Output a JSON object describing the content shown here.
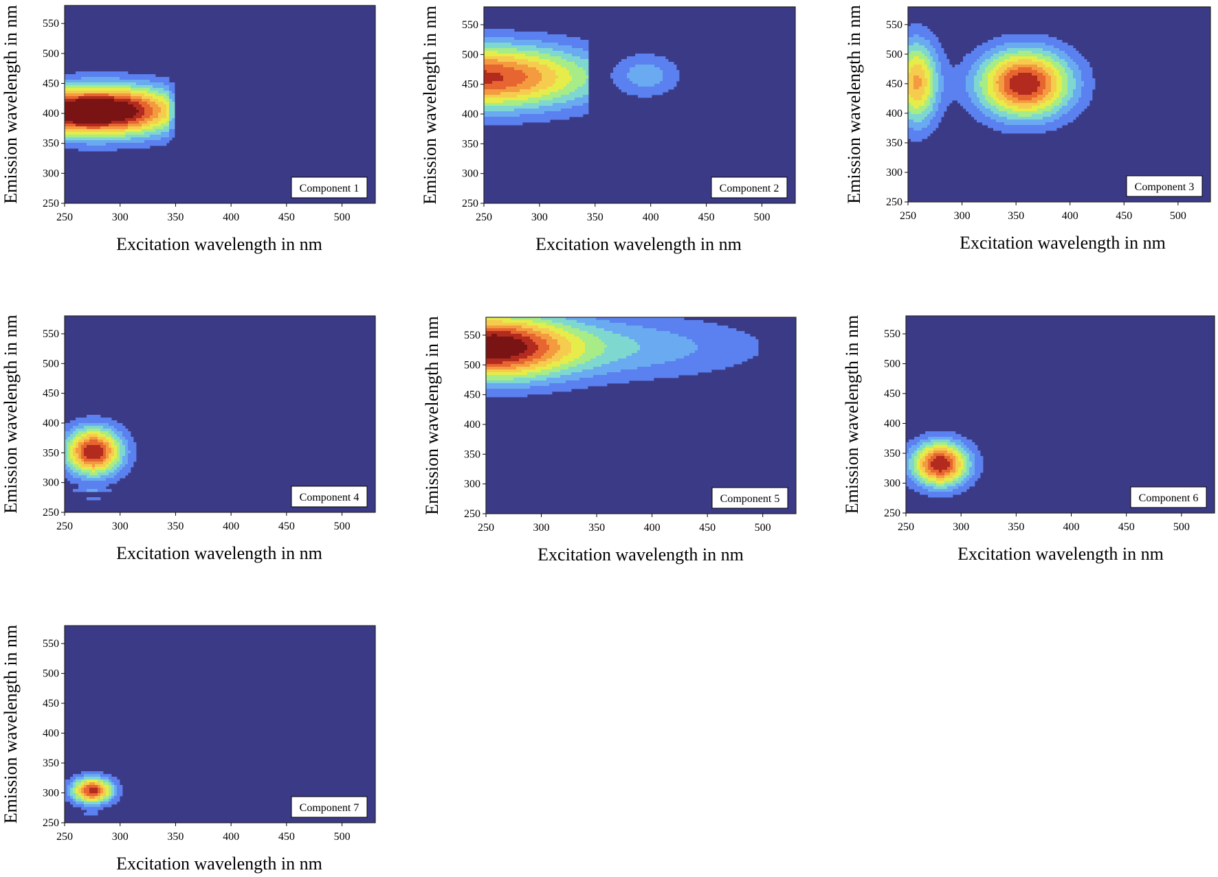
{
  "colors": {
    "background": "#3b3a86",
    "levels": [
      "#5b80ef",
      "#6aaaf0",
      "#7fd8d0",
      "#a7ec86",
      "#e6ec4a",
      "#f6cc4f",
      "#f49a3f",
      "#e66530",
      "#b32b1e",
      "#7a1414"
    ]
  },
  "chart_data": [
    {
      "type": "heatmap",
      "label": "Component 1",
      "xlabel": "Excitation wavelength in nm",
      "ylabel": "Emission wavelength in nm",
      "xlim": [
        250,
        530
      ],
      "ylim": [
        250,
        580
      ],
      "xticks": [
        250,
        300,
        350,
        400,
        450,
        500
      ],
      "yticks": [
        250,
        300,
        350,
        400,
        450,
        500,
        550
      ],
      "peaks": [
        {
          "ex": 250,
          "em": 403,
          "sx": 55,
          "sy": 28,
          "max": 9.4,
          "clip": [
            250,
            345
          ]
        },
        {
          "ex": 305,
          "em": 405,
          "sx": 42,
          "sy": 30,
          "max": 5.6,
          "clip": [
            250,
            350
          ]
        }
      ]
    },
    {
      "type": "heatmap",
      "label": "Component 2",
      "xlabel": "Excitation wavelength in nm",
      "ylabel": "Emission wavelength in nm",
      "xlim": [
        250,
        530
      ],
      "ylim": [
        250,
        580
      ],
      "xticks": [
        250,
        300,
        350,
        400,
        450,
        500
      ],
      "yticks": [
        250,
        300,
        350,
        400,
        450,
        500,
        550
      ],
      "peaks": [
        {
          "ex": 250,
          "em": 462,
          "sx": 70,
          "sy": 38,
          "max": 9.3,
          "clip": [
            250,
            345
          ]
        },
        {
          "ex": 395,
          "em": 465,
          "sx": 22,
          "sy": 26,
          "max": 2.6,
          "clip": [
            250,
            530
          ]
        }
      ]
    },
    {
      "type": "heatmap",
      "label": "Component 3",
      "xlabel": "Excitation wavelength in nm",
      "ylabel": "Emission wavelength in nm",
      "xlim": [
        250,
        530
      ],
      "ylim": [
        250,
        580
      ],
      "xticks": [
        250,
        300,
        350,
        400,
        450,
        500
      ],
      "yticks": [
        250,
        300,
        350,
        400,
        450,
        500,
        550
      ],
      "peaks": [
        {
          "ex": 258,
          "em": 452,
          "sx": 14,
          "sy": 50,
          "max": 7.2,
          "clip": [
            250,
            530
          ]
        },
        {
          "ex": 358,
          "em": 450,
          "sx": 30,
          "sy": 40,
          "max": 10,
          "clip": [
            250,
            530
          ]
        }
      ]
    },
    {
      "type": "heatmap",
      "label": "Component 4",
      "xlabel": "Excitation wavelength in nm",
      "ylabel": "Emission wavelength in nm",
      "xlim": [
        250,
        530
      ],
      "ylim": [
        250,
        580
      ],
      "xticks": [
        250,
        300,
        350,
        400,
        450,
        500
      ],
      "yticks": [
        250,
        300,
        350,
        400,
        450,
        500,
        550
      ],
      "peaks": [
        {
          "ex": 276,
          "em": 352,
          "sx": 18,
          "sy": 28,
          "max": 10,
          "clip": [
            250,
            530
          ]
        },
        {
          "ex": 274,
          "em": 287,
          "sx": 12,
          "sy": 3,
          "max": 1.5,
          "clip": [
            250,
            530
          ]
        },
        {
          "ex": 276,
          "em": 274,
          "sx": 6,
          "sy": 2.5,
          "max": 1.4,
          "clip": [
            250,
            530
          ]
        }
      ]
    },
    {
      "type": "heatmap",
      "label": "Component 5",
      "xlabel": "Excitation wavelength in nm",
      "ylabel": "Emission wavelength in nm",
      "xlim": [
        250,
        530
      ],
      "ylim": [
        250,
        580
      ],
      "xticks": [
        250,
        300,
        350,
        400,
        450,
        500
      ],
      "yticks": [
        250,
        300,
        350,
        400,
        450,
        500,
        550
      ],
      "peaks": [
        {
          "ex": 252,
          "em": 530,
          "sx": 50,
          "sy": 38,
          "max": 9.6,
          "clip": [
            250,
            530
          ]
        },
        {
          "ex": 350,
          "em": 530,
          "sx": 100,
          "sy": 38,
          "max": 3.0,
          "clip": [
            250,
            495
          ]
        }
      ]
    },
    {
      "type": "heatmap",
      "label": "Component 6",
      "xlabel": "Excitation wavelength in nm",
      "ylabel": "Emission wavelength in nm",
      "xlim": [
        250,
        530
      ],
      "ylim": [
        250,
        580
      ],
      "xticks": [
        250,
        300,
        350,
        400,
        450,
        500
      ],
      "yticks": [
        250,
        300,
        350,
        400,
        450,
        500,
        550
      ],
      "peaks": [
        {
          "ex": 281,
          "em": 332,
          "sx": 18,
          "sy": 26,
          "max": 10,
          "clip": [
            250,
            530
          ]
        }
      ]
    },
    {
      "type": "heatmap",
      "label": "Component 7",
      "xlabel": "Excitation wavelength in nm",
      "ylabel": "Emission wavelength in nm",
      "xlim": [
        250,
        530
      ],
      "ylim": [
        250,
        580
      ],
      "xticks": [
        250,
        300,
        350,
        400,
        450,
        500
      ],
      "yticks": [
        250,
        300,
        350,
        400,
        450,
        500,
        550
      ],
      "peaks": [
        {
          "ex": 275,
          "em": 304,
          "sx": 13,
          "sy": 15,
          "max": 9.5,
          "clip": [
            250,
            530
          ]
        },
        {
          "ex": 274,
          "em": 266,
          "sx": 6,
          "sy": 2.5,
          "max": 1.4,
          "clip": [
            250,
            530
          ]
        }
      ]
    }
  ]
}
